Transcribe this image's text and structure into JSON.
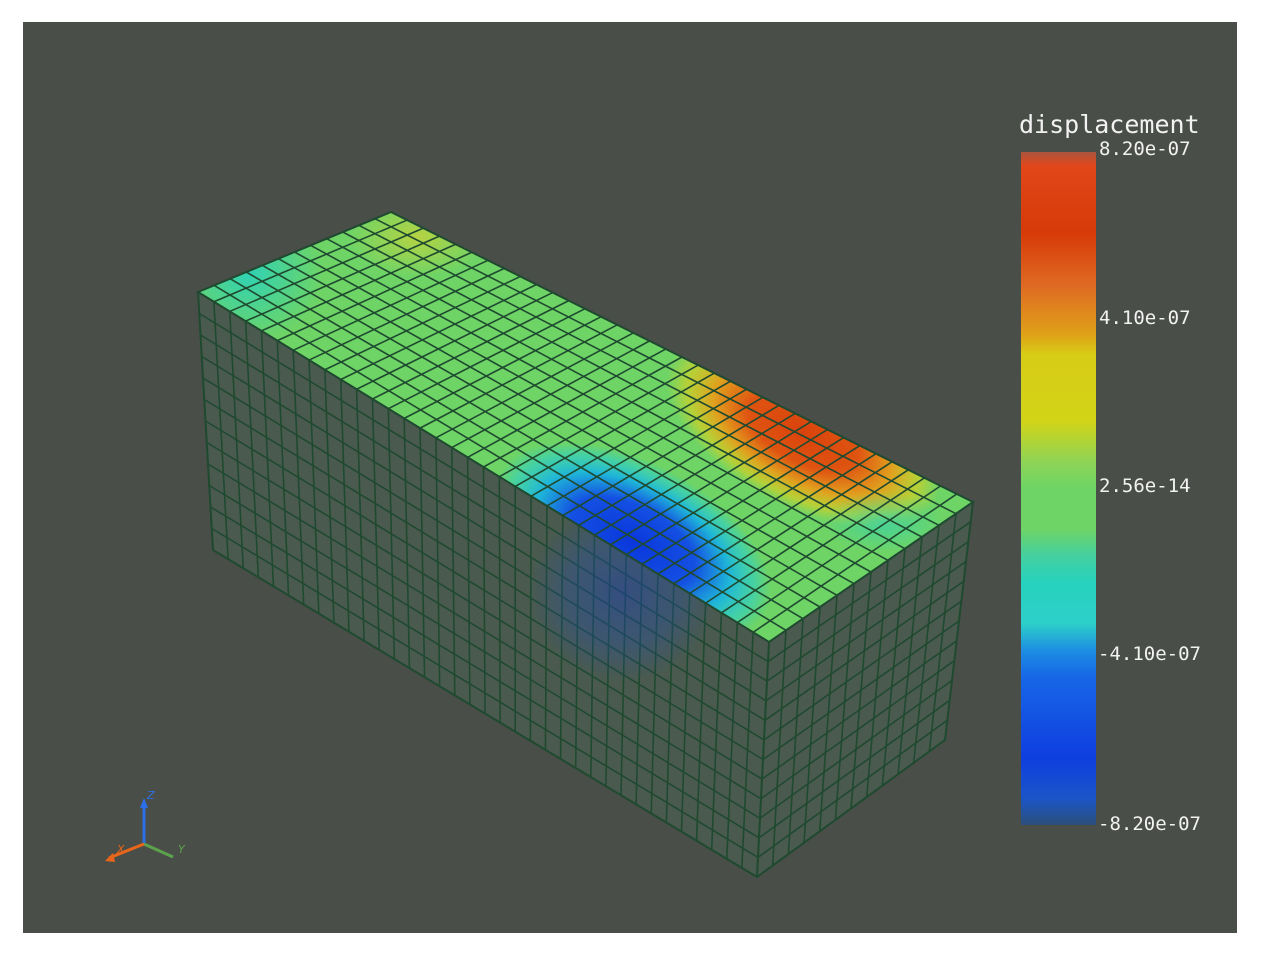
{
  "legend": {
    "title": "displacement",
    "ticks": [
      "8.20e-07",
      "4.10e-07",
      "2.56e-14",
      "-4.10e-07",
      "-8.20e-07"
    ],
    "colormap": [
      "#f04b18",
      "#d73a08",
      "#e1782b",
      "#d7cc16",
      "#c6d432",
      "#6ed466",
      "#67d47a",
      "#27d2be",
      "#2dd0c8",
      "#1767e6",
      "#0f3ee0",
      "#214f9a"
    ]
  },
  "orientation_axes": {
    "x_label": "X",
    "y_label": "Y",
    "z_label": "Z",
    "x_color": "#e8651a",
    "y_color": "#5ca24c",
    "z_color": "#2c6fe6"
  },
  "mesh": {
    "edge_color": "#1f4a30",
    "background": "#4a4e48"
  }
}
